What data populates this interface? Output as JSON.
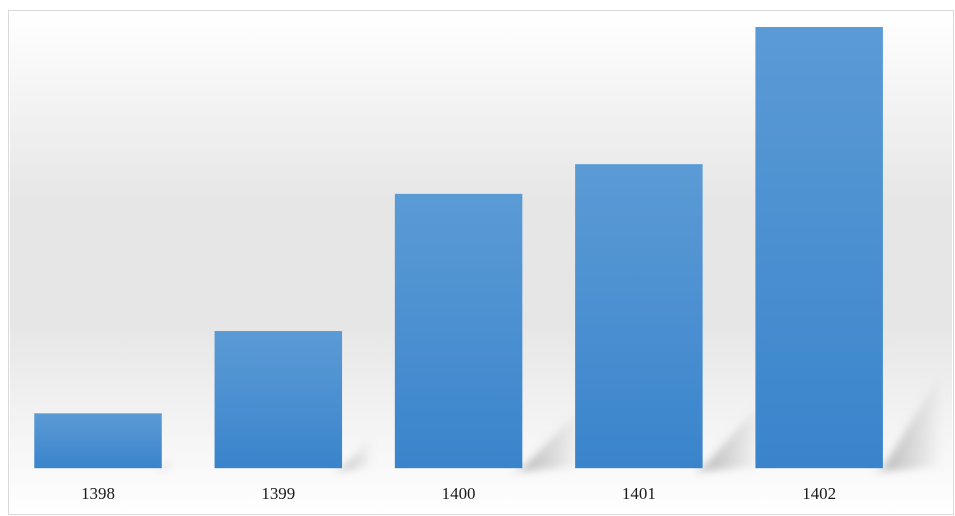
{
  "chart_data": {
    "type": "bar",
    "categories": [
      "1398",
      "1399",
      "1400",
      "1401",
      "1402"
    ],
    "values": [
      1.2,
      3.0,
      6.0,
      6.65,
      9.65
    ],
    "ylim": [
      0,
      10
    ],
    "grid": false,
    "legend": "none",
    "colors": {
      "bar_top": "#5b9bd5",
      "bar_bottom": "#3a84cc",
      "backdrop_top": "#ffffff",
      "backdrop_band": "#e6e6e6",
      "shadow": "#9a9a9a"
    }
  }
}
